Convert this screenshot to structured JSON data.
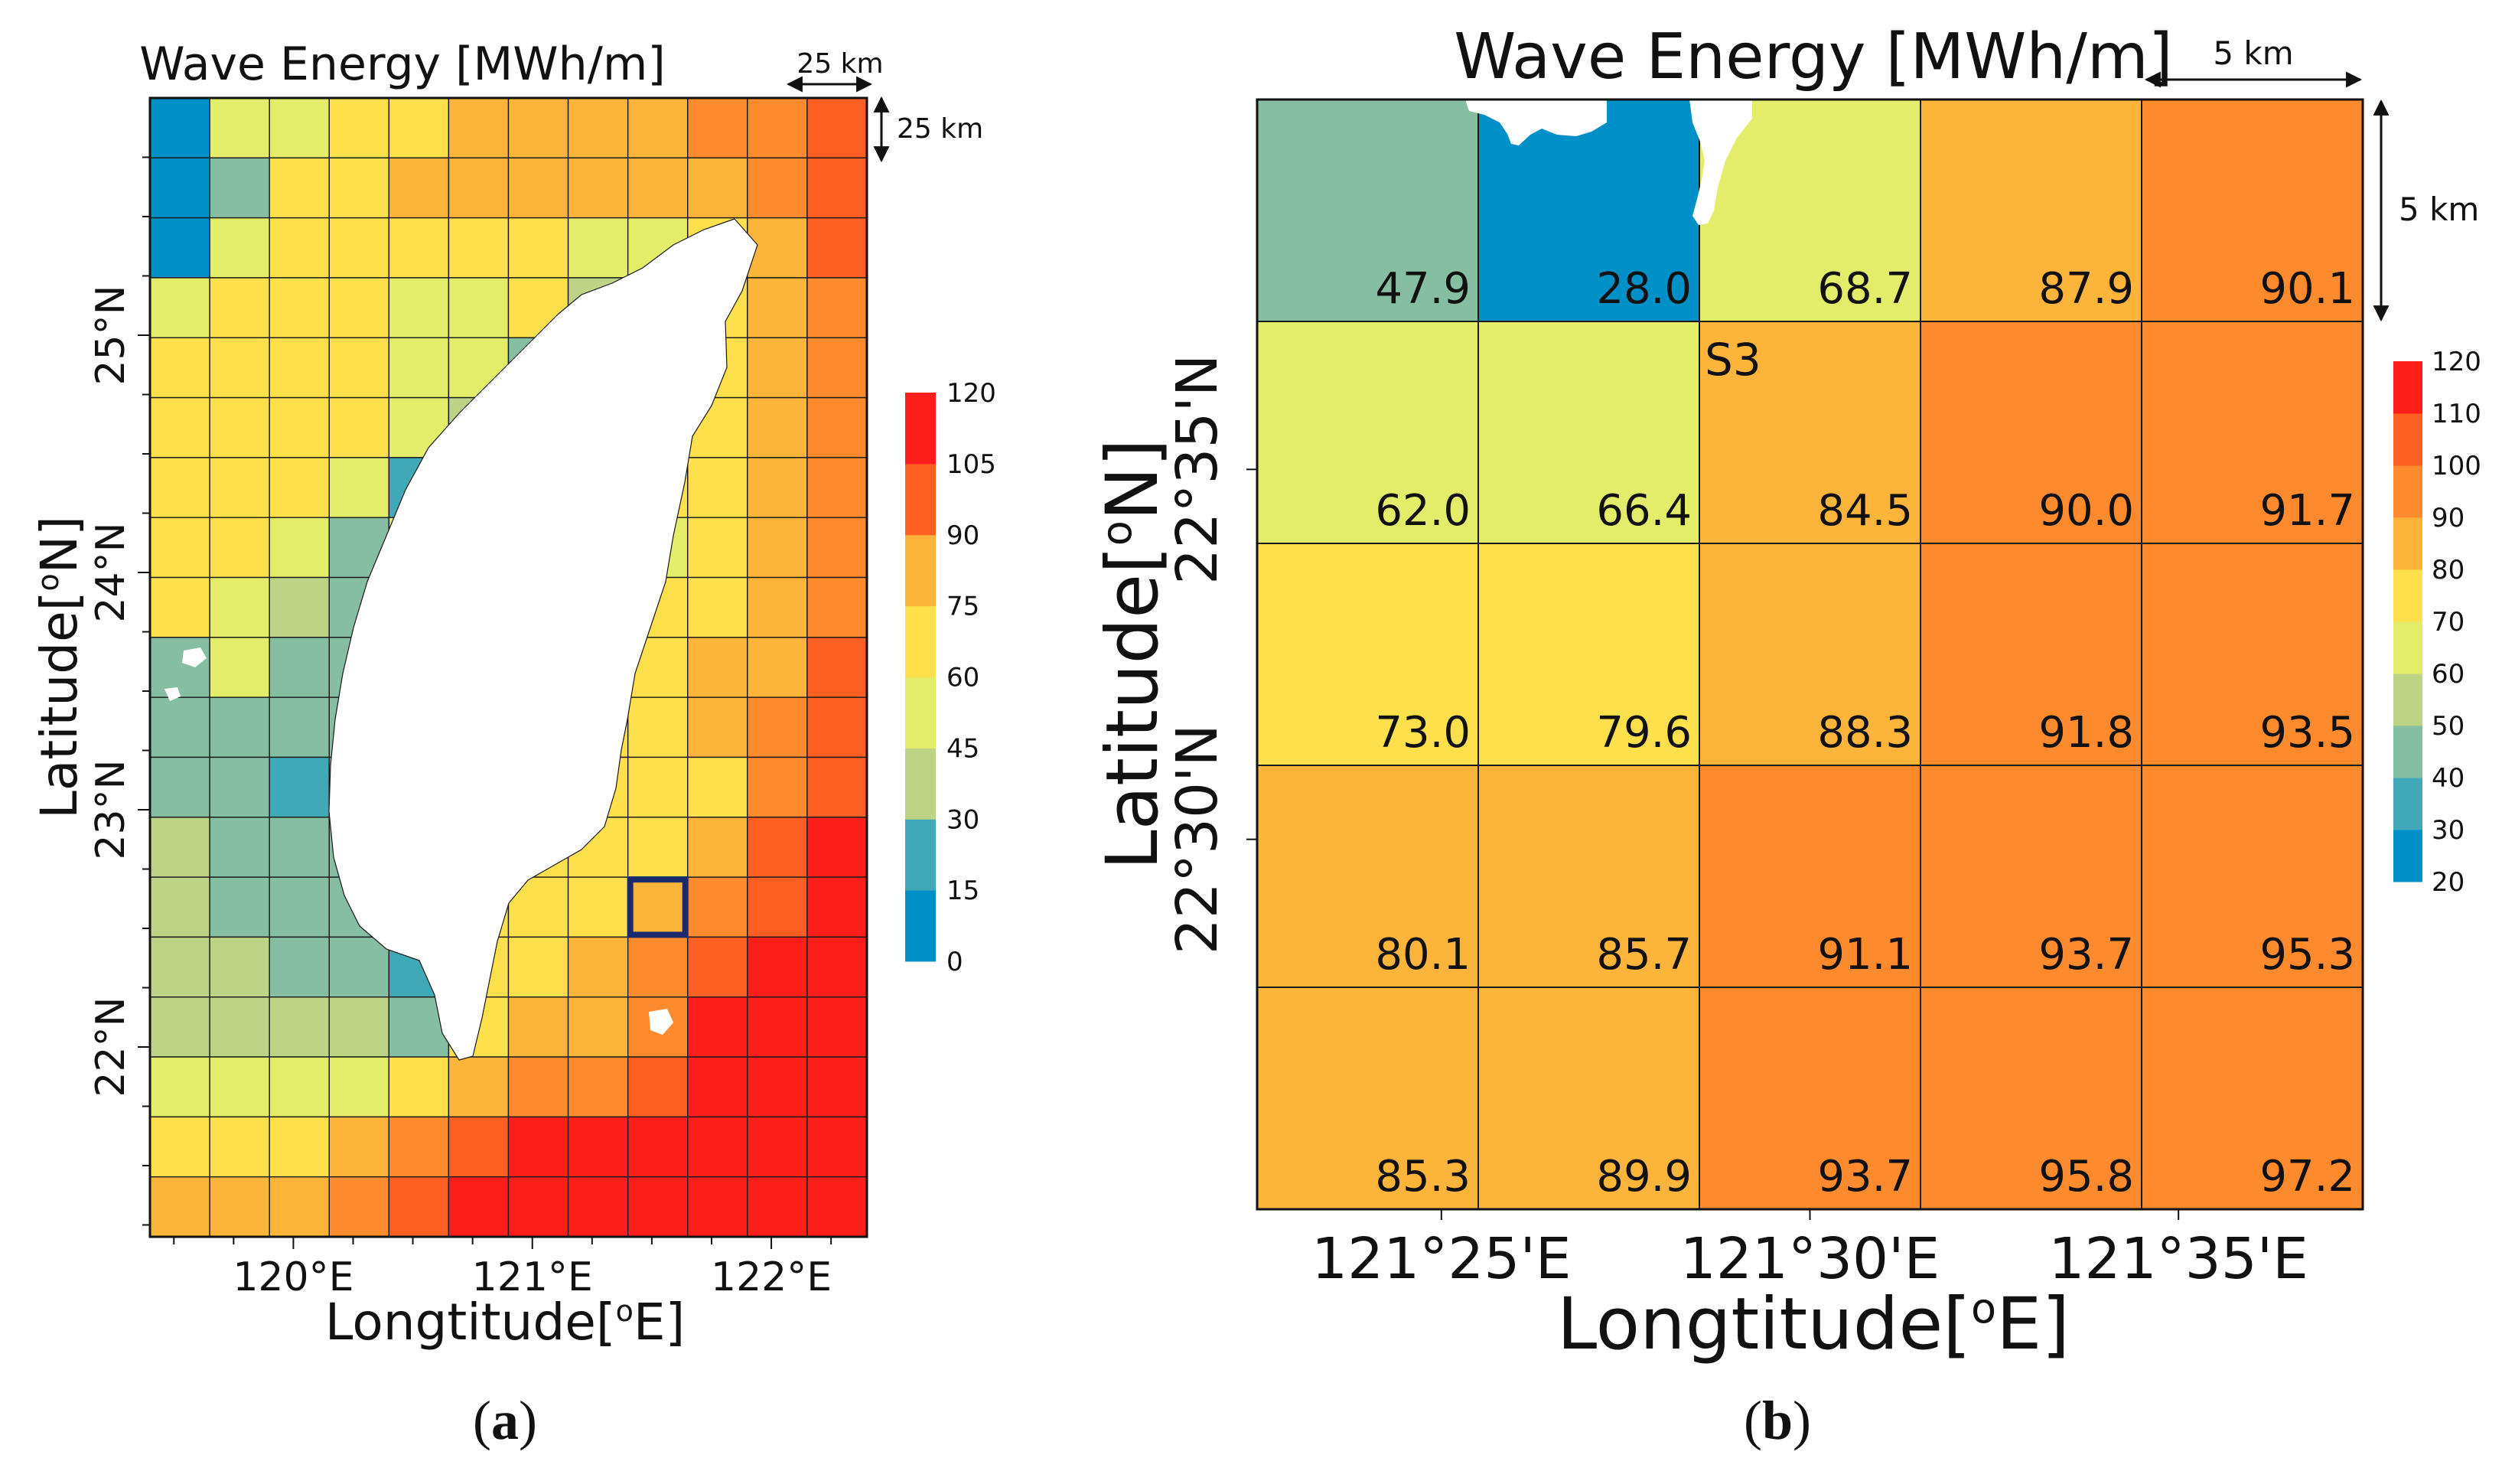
{
  "palette": [
    "#0090c8",
    "#41a8b8",
    "#86bea2",
    "#bdd487",
    "#e3ed6a",
    "#fde04c",
    "#fdb43a",
    "#fd8a2c",
    "#fd5e22",
    "#fb1e1a"
  ],
  "chart_data": [
    {
      "id": "a",
      "panel_label": "a",
      "type": "heatmap",
      "title": "Wave Energy [MWh/m]",
      "xlabel": "Longtitude[",
      "xlabel_unit": "E]",
      "ylabel": "Latitude[",
      "ylabel_unit": "N]",
      "degree_symbol": "o",
      "xlim": [
        119.4,
        122.4
      ],
      "ylim": [
        21.2,
        26.0
      ],
      "xticks": [
        {
          "v": 120,
          "label": "120°E"
        },
        {
          "v": 121,
          "label": "121°E"
        },
        {
          "v": 122,
          "label": "122°E"
        }
      ],
      "yticks": [
        {
          "v": 22,
          "label": "22°N"
        },
        {
          "v": 23,
          "label": "23°N"
        },
        {
          "v": 24,
          "label": "24°N"
        },
        {
          "v": 25,
          "label": "25°N"
        }
      ],
      "scale_x": "25 km",
      "scale_y": "25 km",
      "colorbar": {
        "ticks": [
          0,
          15,
          30,
          45,
          60,
          75,
          90,
          105,
          120
        ],
        "range": [
          0,
          120
        ]
      },
      "highlight_cell": {
        "row": 13,
        "col": 8
      },
      "rows": [
        [
          10,
          48,
          58,
          65,
          66,
          80,
          82,
          82,
          80,
          95,
          95,
          102
        ],
        [
          10,
          35,
          65,
          66,
          80,
          80,
          80,
          80,
          80,
          82,
          95,
          98
        ],
        [
          10,
          58,
          60,
          60,
          60,
          60,
          60,
          58,
          58,
          66,
          82,
          96
        ],
        [
          58,
          66,
          66,
          62,
          58,
          58,
          60,
          45,
          66,
          66,
          75,
          85
        ],
        [
          66,
          66,
          66,
          62,
          58,
          55,
          30,
          60,
          66,
          66,
          78,
          88
        ],
        [
          66,
          66,
          66,
          60,
          50,
          45,
          35,
          60,
          66,
          66,
          80,
          88
        ],
        [
          66,
          66,
          60,
          48,
          20,
          60,
          60,
          60,
          66,
          66,
          80,
          88
        ],
        [
          66,
          60,
          58,
          35,
          58,
          60,
          60,
          60,
          58,
          70,
          80,
          88
        ],
        [
          60,
          58,
          45,
          30,
          60,
          60,
          60,
          60,
          60,
          70,
          80,
          92
        ],
        [
          30,
          48,
          30,
          30,
          60,
          60,
          60,
          60,
          60,
          75,
          82,
          98
        ],
        [
          30,
          30,
          30,
          30,
          60,
          60,
          60,
          60,
          60,
          75,
          90,
          98
        ],
        [
          30,
          30,
          20,
          30,
          60,
          60,
          60,
          60,
          60,
          70,
          88,
          100
        ],
        [
          45,
          35,
          30,
          30,
          60,
          60,
          60,
          60,
          68,
          80,
          100,
          115
        ],
        [
          45,
          35,
          30,
          30,
          60,
          60,
          60,
          60,
          75,
          92,
          100,
          115
        ],
        [
          45,
          45,
          30,
          25,
          20,
          60,
          65,
          80,
          92,
          100,
          115,
          115
        ],
        [
          45,
          45,
          45,
          45,
          30,
          60,
          80,
          82,
          92,
          115,
          115,
          115
        ],
        [
          58,
          58,
          58,
          58,
          65,
          80,
          90,
          95,
          100,
          115,
          115,
          115
        ],
        [
          66,
          66,
          66,
          80,
          95,
          100,
          115,
          115,
          115,
          115,
          115,
          115
        ],
        [
          82,
          82,
          82,
          95,
          100,
          115,
          115,
          115,
          115,
          115,
          115,
          115
        ]
      ]
    },
    {
      "id": "b",
      "panel_label": "b",
      "type": "heatmap",
      "title": "Wave Energy [MWh/m]",
      "xlabel": "Longtitude[",
      "xlabel_unit": "E]",
      "ylabel": "Latitude[",
      "ylabel_unit": "N]",
      "degree_symbol": "o",
      "xticks": [
        "121°25'E",
        "121°30'E",
        "121°35'E"
      ],
      "yticks": [
        "22°35'N",
        "22°30'N"
      ],
      "scale_x": "5 km",
      "scale_y": "5 km",
      "site_label": "S3",
      "colorbar": {
        "ticks": [
          20,
          30,
          40,
          50,
          60,
          70,
          80,
          90,
          100,
          110,
          120
        ],
        "range": [
          20,
          120
        ]
      },
      "rows": [
        [
          "47.9",
          "28.0",
          "68.7",
          "87.9",
          "90.1"
        ],
        [
          "62.0",
          "66.4",
          "84.5",
          "90.0",
          "91.7"
        ],
        [
          "73.0",
          "79.6",
          "88.3",
          "91.8",
          "93.5"
        ],
        [
          "80.1",
          "85.7",
          "91.1",
          "93.7",
          "95.3"
        ],
        [
          "85.3",
          "89.9",
          "93.7",
          "95.8",
          "97.2"
        ]
      ]
    }
  ]
}
